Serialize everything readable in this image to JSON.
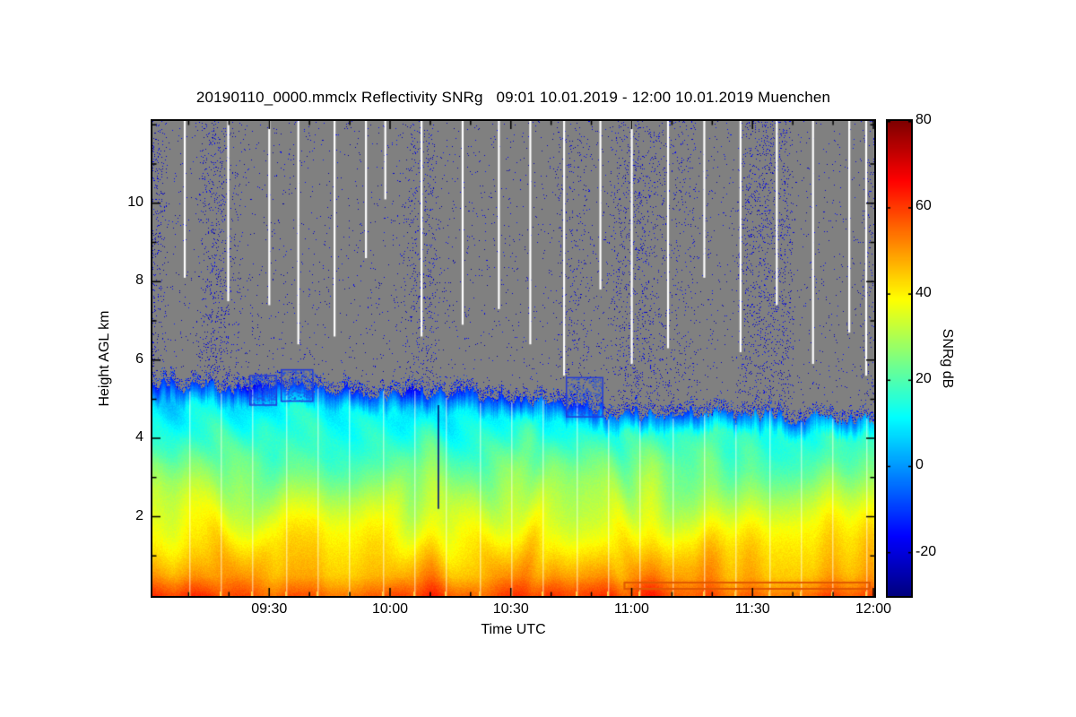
{
  "figure": {
    "title": "20190110_0000.mmclx Reflectivity SNRg   09:01 10.01.2019 - 12:00 10.01.2019 Muenchen",
    "xlabel": "Time UTC",
    "ylabel": "Height AGL km",
    "colorbar_label": "SNRg dB"
  },
  "chart_data": {
    "type": "heatmap",
    "title": "20190110_0000.mmclx Reflectivity SNRg   09:01 10.01.2019 - 12:00 10.01.2019 Muenchen",
    "source_file": "20190110_0000.mmclx",
    "quantity": "Reflectivity SNRg",
    "site": "Muenchen",
    "time_start": "09:01 10.01.2019",
    "time_end": "12:00 10.01.2019",
    "xlabel": "Time UTC",
    "ylabel": "Height AGL km",
    "colorbar_label": "SNRg dB",
    "colormap": "jet",
    "x_range_hours": [
      9.0167,
      12.0
    ],
    "x_major_ticks": [
      {
        "hours": 9.5,
        "label": "09:30"
      },
      {
        "hours": 10.0,
        "label": "10:00"
      },
      {
        "hours": 10.5,
        "label": "10:30"
      },
      {
        "hours": 11.0,
        "label": "11:00"
      },
      {
        "hours": 11.5,
        "label": "11:30"
      },
      {
        "hours": 12.0,
        "label": "12:00"
      }
    ],
    "x_minor_step_hours": 0.1666667,
    "y_range_km": [
      0,
      12.1
    ],
    "y_major_ticks_km": [
      2,
      4,
      6,
      8,
      10
    ],
    "y_minor_step_km": 1,
    "value_range_db": [
      -30,
      80
    ],
    "colorbar_ticks_db": [
      80,
      60,
      40,
      20,
      0,
      -20
    ],
    "no_signal_gray": "#808080",
    "noise_speckle_db_range": [
      -27,
      -13
    ],
    "surface_snr_db": 54,
    "snr_lapse_db_per_km": 9.2,
    "cloud_top_profile": {
      "hours": [
        9.02,
        9.3,
        9.6,
        9.9,
        10.2,
        10.5,
        10.7,
        10.9,
        11.1,
        11.4,
        11.7,
        12.0
      ],
      "top_km": [
        5.45,
        5.3,
        5.35,
        5.2,
        5.15,
        5.05,
        4.95,
        4.7,
        4.6,
        4.62,
        4.55,
        4.5
      ]
    },
    "white_streaks": [
      {
        "hour": 9.15,
        "bottom_km": 8.1
      },
      {
        "hour": 9.33,
        "bottom_km": 7.5
      },
      {
        "hour": 9.5,
        "bottom_km": 7.4
      },
      {
        "hour": 9.62,
        "bottom_km": 6.4
      },
      {
        "hour": 9.77,
        "bottom_km": 6.6
      },
      {
        "hour": 9.9,
        "bottom_km": 8.6
      },
      {
        "hour": 9.98,
        "bottom_km": 10.1
      },
      {
        "hour": 10.13,
        "bottom_km": 6.6
      },
      {
        "hour": 10.3,
        "bottom_km": 6.9
      },
      {
        "hour": 10.45,
        "bottom_km": 7.3
      },
      {
        "hour": 10.58,
        "bottom_km": 6.4
      },
      {
        "hour": 10.72,
        "bottom_km": 5.6
      },
      {
        "hour": 10.87,
        "bottom_km": 7.8
      },
      {
        "hour": 11.0,
        "bottom_km": 5.9
      },
      {
        "hour": 11.15,
        "bottom_km": 6.3
      },
      {
        "hour": 11.3,
        "bottom_km": 8.1
      },
      {
        "hour": 11.45,
        "bottom_km": 6.2
      },
      {
        "hour": 11.6,
        "bottom_km": 7.4
      },
      {
        "hour": 11.75,
        "bottom_km": 5.9
      },
      {
        "hour": 11.9,
        "bottom_km": 6.7
      },
      {
        "hour": 11.97,
        "bottom_km": 5.6
      }
    ],
    "echo_gap_lines_hours": [
      9.17,
      9.3,
      9.43,
      9.57,
      9.7,
      9.83,
      9.97,
      10.1,
      10.23,
      10.37,
      10.5,
      10.63,
      10.77,
      10.9,
      11.03,
      11.17,
      11.3,
      11.43,
      11.57,
      11.7,
      11.83,
      11.97
    ],
    "dark_line": {
      "hour": 10.2,
      "top_km": 4.85,
      "bottom_km": 2.2
    },
    "detached_features": [
      {
        "start_hour": 9.42,
        "end_hour": 9.53,
        "base_km": 4.85,
        "top_km": 5.6
      },
      {
        "start_hour": 9.55,
        "end_hour": 9.68,
        "base_km": 4.95,
        "top_km": 5.75
      },
      {
        "start_hour": 10.73,
        "end_hour": 10.88,
        "base_km": 4.55,
        "top_km": 5.55
      }
    ],
    "overlay_segment": {
      "start_hour": 10.97,
      "end_hour": 11.985,
      "top_km": 0.32,
      "bottom_km": 0.16,
      "color": "#E05A00"
    }
  }
}
